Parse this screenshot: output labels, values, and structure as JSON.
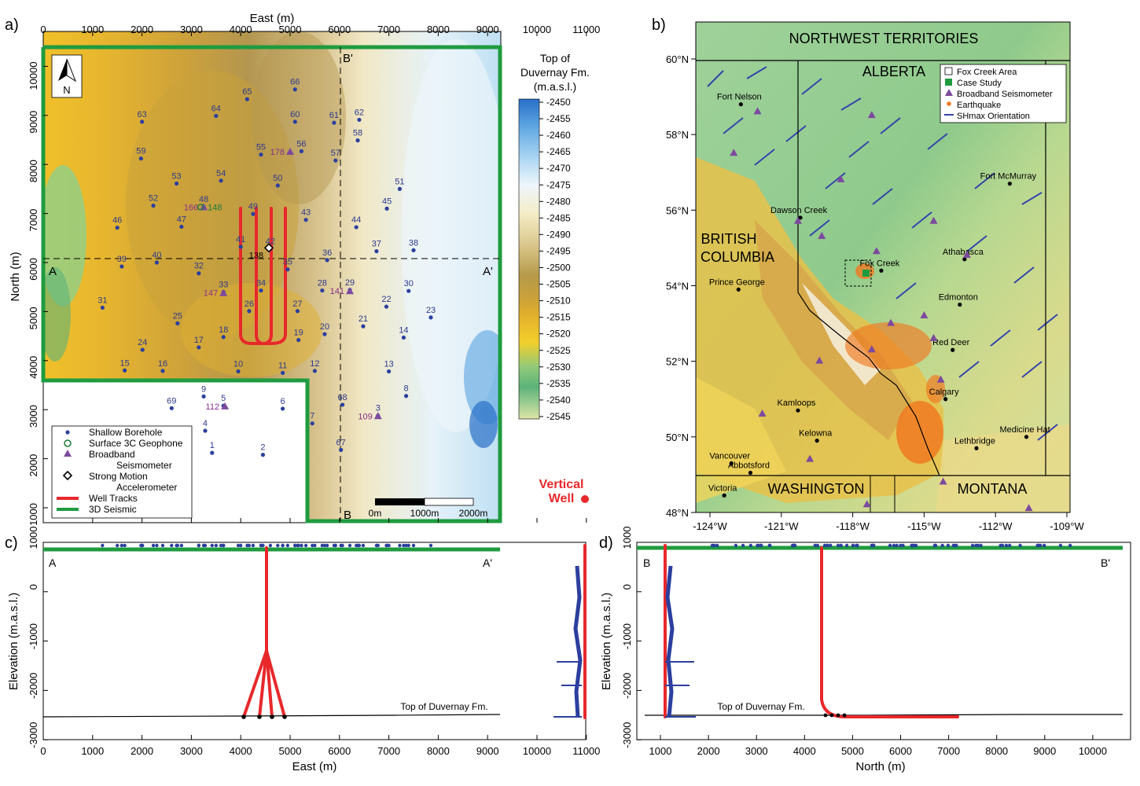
{
  "panels": {
    "a": {
      "letter": "a)",
      "x_title": "East (m)",
      "y_title": "North (m)",
      "x_ticks": [
        "0",
        "1000",
        "2000",
        "3000",
        "4000",
        "5000",
        "6000",
        "7000",
        "8000",
        "9000",
        "10000",
        "11000"
      ],
      "y_ticks": [
        "1000",
        "2000",
        "3000",
        "4000",
        "5000",
        "6000",
        "7000",
        "8000",
        "9000",
        "10000"
      ],
      "section_labels": {
        "A": "A",
        "A_prime": "A'",
        "B": "B",
        "B_prime": "B'"
      },
      "north_arrow": "N",
      "colorbar": {
        "title_lines": [
          "Top of",
          "Duvernay Fm.",
          "(m.a.s.l.)"
        ],
        "ticks": [
          "-2450",
          "-2455",
          "-2460",
          "-2465",
          "-2470",
          "-2475",
          "-2480",
          "-2485",
          "-2490",
          "-2495",
          "-2500",
          "-2505",
          "-2510",
          "-2515",
          "-2520",
          "-2525",
          "-2530",
          "-2535",
          "-2540",
          "-2545"
        ]
      },
      "scale_bar": [
        "0m",
        "1000m",
        "2000m"
      ],
      "vertical_well_label": [
        "Vertical",
        "Well"
      ],
      "legend": [
        {
          "symbol": "dot",
          "color": "#2b3f9e",
          "lines": [
            "Shallow Borehole"
          ]
        },
        {
          "symbol": "circle",
          "color": "#1e7a3a",
          "lines": [
            "Surface 3C Geophone"
          ]
        },
        {
          "symbol": "triangle",
          "color": "#7c4a9e",
          "lines": [
            "Broadband",
            "Seismometer"
          ]
        },
        {
          "symbol": "diamond",
          "color": "#000000",
          "lines": [
            "Strong Motion",
            "Accelerometer"
          ]
        },
        {
          "symbol": "line",
          "color": "#e8282b",
          "lines": [
            "Well Tracks"
          ]
        },
        {
          "symbol": "line",
          "color": "#1f9b3f",
          "lines": [
            "3D Seismic"
          ]
        }
      ],
      "boreholes": [
        {
          "id": "1",
          "e": 3420,
          "n": 2120
        },
        {
          "id": "2",
          "e": 4450,
          "n": 2080
        },
        {
          "id": "3",
          "e": 6780,
          "n": 2880
        },
        {
          "id": "4",
          "e": 3280,
          "n": 2570
        },
        {
          "id": "5",
          "e": 3650,
          "n": 3080
        },
        {
          "id": "6",
          "e": 4850,
          "n": 3020
        },
        {
          "id": "7",
          "e": 5450,
          "n": 2720
        },
        {
          "id": "8",
          "e": 7350,
          "n": 3280
        },
        {
          "id": "9",
          "e": 3250,
          "n": 3270
        },
        {
          "id": "10",
          "e": 3950,
          "n": 3780
        },
        {
          "id": "11",
          "e": 4850,
          "n": 3750
        },
        {
          "id": "12",
          "e": 5500,
          "n": 3790
        },
        {
          "id": "13",
          "e": 7000,
          "n": 3780
        },
        {
          "id": "14",
          "e": 7300,
          "n": 4470
        },
        {
          "id": "15",
          "e": 1650,
          "n": 3800
        },
        {
          "id": "16",
          "e": 2420,
          "n": 3790
        },
        {
          "id": "17",
          "e": 3150,
          "n": 4270
        },
        {
          "id": "18",
          "e": 3650,
          "n": 4480
        },
        {
          "id": "19",
          "e": 5170,
          "n": 4420
        },
        {
          "id": "20",
          "e": 5700,
          "n": 4540
        },
        {
          "id": "21",
          "e": 6480,
          "n": 4700
        },
        {
          "id": "22",
          "e": 6950,
          "n": 5100
        },
        {
          "id": "23",
          "e": 7850,
          "n": 4880
        },
        {
          "id": "24",
          "e": 2010,
          "n": 4220
        },
        {
          "id": "25",
          "e": 2720,
          "n": 4760
        },
        {
          "id": "26",
          "e": 4170,
          "n": 5010
        },
        {
          "id": "27",
          "e": 5150,
          "n": 5010
        },
        {
          "id": "28",
          "e": 5650,
          "n": 5430
        },
        {
          "id": "29",
          "e": 6210,
          "n": 5440
        },
        {
          "id": "30",
          "e": 7400,
          "n": 5420
        },
        {
          "id": "31",
          "e": 1200,
          "n": 5080
        },
        {
          "id": "32",
          "e": 3150,
          "n": 5780
        },
        {
          "id": "33",
          "e": 3650,
          "n": 5400
        },
        {
          "id": "34",
          "e": 4410,
          "n": 5430
        },
        {
          "id": "35",
          "e": 4950,
          "n": 5860
        },
        {
          "id": "36",
          "e": 5750,
          "n": 6050
        },
        {
          "id": "37",
          "e": 6750,
          "n": 6230
        },
        {
          "id": "38",
          "e": 7500,
          "n": 6250
        },
        {
          "id": "39",
          "e": 1590,
          "n": 5920
        },
        {
          "id": "40",
          "e": 2300,
          "n": 6000
        },
        {
          "id": "41",
          "e": 4000,
          "n": 6320
        },
        {
          "id": "42",
          "e": 4600,
          "n": 6280
        },
        {
          "id": "43",
          "e": 5320,
          "n": 6870
        },
        {
          "id": "44",
          "e": 6340,
          "n": 6720
        },
        {
          "id": "45",
          "e": 6960,
          "n": 7100
        },
        {
          "id": "46",
          "e": 1500,
          "n": 6710
        },
        {
          "id": "47",
          "e": 2800,
          "n": 6730
        },
        {
          "id": "48",
          "e": 3250,
          "n": 7140
        },
        {
          "id": "49",
          "e": 4250,
          "n": 6990
        },
        {
          "id": "50",
          "e": 4750,
          "n": 7570
        },
        {
          "id": "51",
          "e": 7220,
          "n": 7500
        },
        {
          "id": "52",
          "e": 2230,
          "n": 7160
        },
        {
          "id": "53",
          "e": 2700,
          "n": 7610
        },
        {
          "id": "54",
          "e": 3600,
          "n": 7670
        },
        {
          "id": "55",
          "e": 4410,
          "n": 8200
        },
        {
          "id": "56",
          "e": 5230,
          "n": 8270
        },
        {
          "id": "57",
          "e": 5920,
          "n": 8080
        },
        {
          "id": "58",
          "e": 6370,
          "n": 8490
        },
        {
          "id": "59",
          "e": 1980,
          "n": 8120
        },
        {
          "id": "60",
          "e": 5100,
          "n": 8870
        },
        {
          "id": "61",
          "e": 5890,
          "n": 8850
        },
        {
          "id": "62",
          "e": 6400,
          "n": 8910
        },
        {
          "id": "63",
          "e": 2000,
          "n": 8870
        },
        {
          "id": "64",
          "e": 3500,
          "n": 8990
        },
        {
          "id": "65",
          "e": 4130,
          "n": 9330
        },
        {
          "id": "66",
          "e": 5100,
          "n": 9530
        },
        {
          "id": "67",
          "e": 6030,
          "n": 2180
        },
        {
          "id": "68",
          "e": 6060,
          "n": 3100
        },
        {
          "id": "69",
          "e": 2600,
          "n": 3030
        }
      ],
      "seismometers": [
        {
          "id": "178",
          "e": 5000,
          "n": 8260
        },
        {
          "id": "166",
          "e": 3250,
          "n": 7130
        },
        {
          "id": "147",
          "e": 3650,
          "n": 5380
        },
        {
          "id": "141",
          "e": 6210,
          "n": 5420
        },
        {
          "id": "112",
          "e": 3680,
          "n": 3070
        },
        {
          "id": "109",
          "e": 6780,
          "n": 2870
        }
      ],
      "geophone": {
        "id": "148",
        "e": 3330,
        "n": 7130
      },
      "accelerometer": {
        "id": "138",
        "e": 4570,
        "n": 6300
      }
    },
    "b": {
      "letter": "b)",
      "x_ticks": [
        "-124°W",
        "-121°W",
        "-118°W",
        "-115°W",
        "-112°W",
        "-109°W"
      ],
      "y_ticks": [
        "48°N",
        "50°N",
        "52°N",
        "54°N",
        "56°N",
        "58°N",
        "60°N"
      ],
      "regions": [
        "NORTHWEST TERRITORIES",
        "ALBERTA",
        "BRITISH",
        "COLUMBIA",
        "WASHINGTON",
        "MONTANA"
      ],
      "cities": [
        {
          "name": "Fort Nelson",
          "lon": -122.7,
          "lat": 58.8
        },
        {
          "name": "Fort McMurray",
          "lon": -111.4,
          "lat": 56.7
        },
        {
          "name": "Dawson Creek",
          "lon": -120.2,
          "lat": 55.8
        },
        {
          "name": "Fox Creek",
          "lon": -116.8,
          "lat": 54.4
        },
        {
          "name": "Athabasca",
          "lon": -113.3,
          "lat": 54.7
        },
        {
          "name": "Prince George",
          "lon": -122.8,
          "lat": 53.9
        },
        {
          "name": "Edmonton",
          "lon": -113.5,
          "lat": 53.5
        },
        {
          "name": "Red Deer",
          "lon": -113.8,
          "lat": 52.3
        },
        {
          "name": "Calgary",
          "lon": -114.1,
          "lat": 51.0
        },
        {
          "name": "Kamloops",
          "lon": -120.3,
          "lat": 50.7
        },
        {
          "name": "Kelowna",
          "lon": -119.5,
          "lat": 49.9
        },
        {
          "name": "Medicine Hat",
          "lon": -110.7,
          "lat": 50.0
        },
        {
          "name": "Lethbridge",
          "lon": -112.8,
          "lat": 49.7
        },
        {
          "name": "Vancouver",
          "lon": -123.1,
          "lat": 49.3
        },
        {
          "name": "Abbotsford",
          "lon": -122.3,
          "lat": 49.05
        },
        {
          "name": "Victoria",
          "lon": -123.4,
          "lat": 48.45
        }
      ],
      "legend": [
        {
          "symbol": "box",
          "color": "#ffffff",
          "label": "Fox Creek Area"
        },
        {
          "symbol": "square",
          "color": "#1f9b3f",
          "label": "Case Study"
        },
        {
          "symbol": "triangle",
          "color": "#7c4a9e",
          "label": "Broadband Seismometer"
        },
        {
          "symbol": "dot",
          "color": "#f07a22",
          "label": "Earthquake"
        },
        {
          "symbol": "stick",
          "color": "#3344aa",
          "label": "SHmax Orientation"
        }
      ]
    },
    "c": {
      "letter": "c)",
      "x_title": "East (m)",
      "y_title": "Elevation (m.a.s.l.)",
      "x_ticks": [
        "0",
        "1000",
        "2000",
        "3000",
        "4000",
        "5000",
        "6000",
        "7000",
        "8000",
        "9000",
        "10000",
        "11000"
      ],
      "y_ticks": [
        "1000",
        "0",
        "-1000",
        "-2000",
        "-3000"
      ],
      "left_label": "A",
      "right_label": "A'",
      "horizon_label": "Top of Duvernay Fm."
    },
    "d": {
      "letter": "d)",
      "x_title": "North (m)",
      "y_title": "Elevation (m.a.s.l.)",
      "x_ticks": [
        "1000",
        "2000",
        "3000",
        "4000",
        "5000",
        "6000",
        "7000",
        "8000",
        "9000",
        "10000"
      ],
      "y_ticks": [
        "1000",
        "0",
        "-1000",
        "-2000",
        "-3000"
      ],
      "left_label": "B",
      "right_label": "B'",
      "horizon_label": "Top of Duvernay Fm."
    }
  },
  "colors": {
    "borehole": "#2b3f9e",
    "seismometer": "#7c4a9e",
    "seis_label": "#8a2f8a",
    "well": "#e8282b",
    "seismic": "#1f9b3f",
    "earthquake": "#f07a22",
    "label_blue": "#2d3a8c",
    "vertical_well": "#e8282b"
  }
}
